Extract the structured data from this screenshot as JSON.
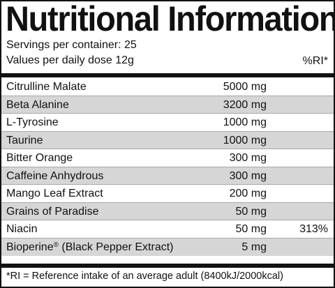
{
  "label": {
    "title": "Nutritional Information",
    "servings": "Servings per container: 25",
    "dose": "Values per daily dose 12g",
    "ri_header": "%RI*",
    "footnote": "*RI = Reference intake of an average adult (8400kJ/2000kcal)"
  },
  "ingredients": [
    {
      "name": "Citrulline Malate",
      "amount": "5000 mg",
      "ri": ""
    },
    {
      "name": "Beta Alanine",
      "amount": "3200 mg",
      "ri": ""
    },
    {
      "name": "L-Tyrosine",
      "amount": "1000 mg",
      "ri": ""
    },
    {
      "name": "Taurine",
      "amount": "1000 mg",
      "ri": ""
    },
    {
      "name": "Bitter Orange",
      "amount": "300 mg",
      "ri": ""
    },
    {
      "name": "Caffeine Anhydrous",
      "amount": "300 mg",
      "ri": ""
    },
    {
      "name": "Mango Leaf Extract",
      "amount": "200 mg",
      "ri": ""
    },
    {
      "name": "Grains of Paradise",
      "amount": "50 mg",
      "ri": ""
    },
    {
      "name": "Niacin",
      "amount": "50 mg",
      "ri": "313%"
    },
    {
      "name": "Bioperine",
      "mark": "®",
      "name_suffix": " (Black Pepper Extract)",
      "amount": "5 mg",
      "ri": ""
    }
  ],
  "colors": {
    "shade": "#d6d6d6",
    "ink": "#111111",
    "divider": "#a8a8a8"
  }
}
